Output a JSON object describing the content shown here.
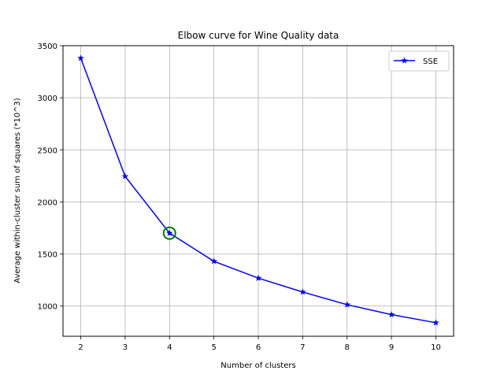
{
  "chart_data": {
    "type": "line",
    "title": "Elbow curve for Wine Quality data",
    "xlabel": "Number of clusters",
    "ylabel": "Average within-cluster sum of squares (*10^3)",
    "x": [
      2,
      3,
      4,
      5,
      6,
      7,
      8,
      9,
      10
    ],
    "series": [
      {
        "name": "SSE",
        "values": [
          3380,
          2245,
          1700,
          1430,
          1268,
          1135,
          1013,
          918,
          840
        ],
        "color": "#0000ff",
        "marker": "star"
      }
    ],
    "xticks": [
      2,
      3,
      4,
      5,
      6,
      7,
      8,
      9,
      10
    ],
    "yticks": [
      1000,
      1500,
      2000,
      2500,
      3000,
      3500
    ],
    "xlim": [
      1.6,
      10.4
    ],
    "ylim": [
      710,
      3500
    ],
    "grid": true,
    "legend_position": "top-right",
    "highlight": {
      "x": 4,
      "y": 1700,
      "color": "#008000",
      "shape": "circle"
    }
  }
}
